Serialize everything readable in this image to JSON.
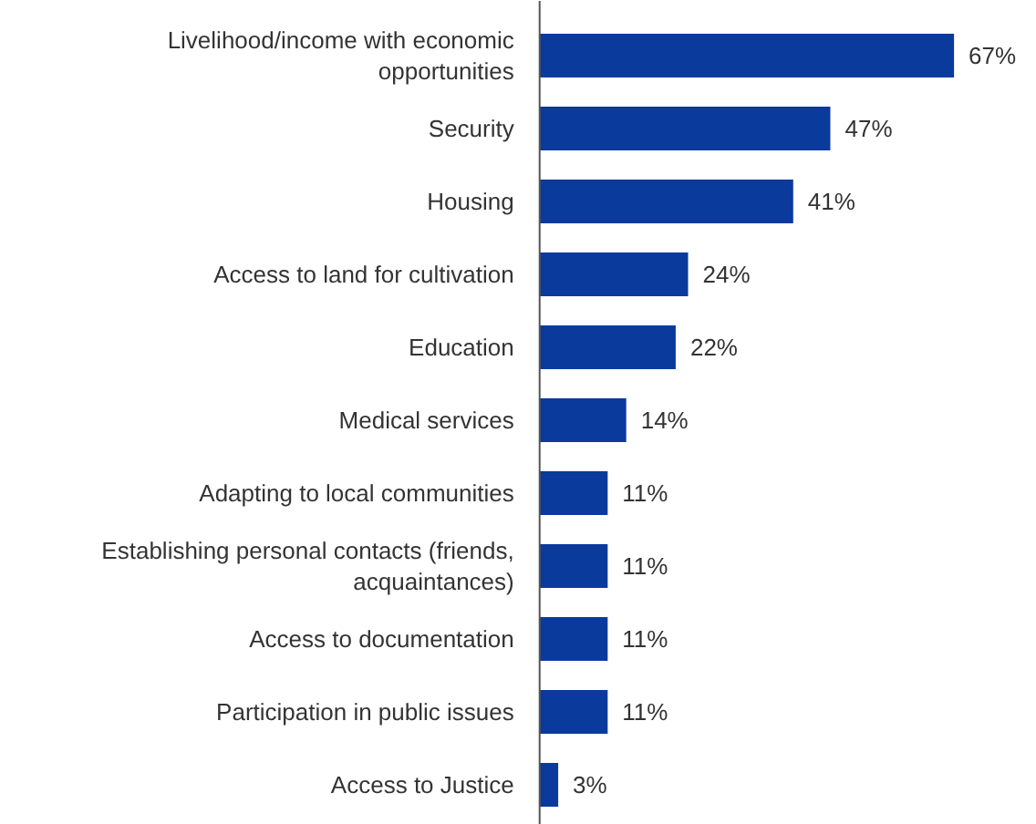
{
  "chart_data": {
    "type": "bar",
    "orientation": "horizontal",
    "categories": [
      "Livelihood/income with economic opportunities",
      "Security",
      "Housing",
      "Access to land for cultivation",
      "Education",
      "Medical services",
      "Adapting to local communities",
      "Establishing personal contacts (friends, acquaintances)",
      "Access to documentation",
      "Participation in public issues",
      "Access to Justice"
    ],
    "values": [
      67,
      47,
      41,
      24,
      22,
      14,
      11,
      11,
      11,
      11,
      3
    ],
    "value_labels": [
      "67%",
      "47%",
      "41%",
      "24%",
      "22%",
      "14%",
      "11%",
      "11%",
      "11%",
      "11%",
      "3%"
    ],
    "color": "#0a3a9c"
  }
}
